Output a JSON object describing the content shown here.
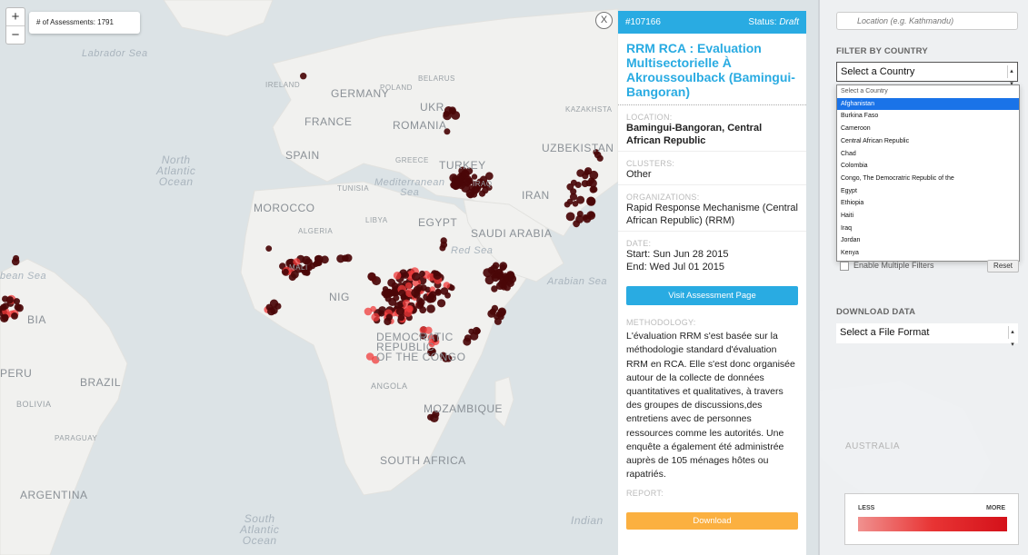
{
  "map": {
    "zoom_in": "+",
    "zoom_out": "−",
    "assessment_count": "# of Assessments: 1791",
    "labels": {
      "labrador_sea": "Labrador Sea",
      "north_atlantic": "North\nAtlantic\nOcean",
      "south_atlantic": "South\nAtlantic\nOcean",
      "indian": "Indian",
      "caribbean": "bean Sea",
      "mediterranean": "Mediterranean\nSea",
      "red_sea": "Red Sea",
      "arabian_sea": "Arabian Sea",
      "germany": "GERMANY",
      "france": "FRANCE",
      "spain": "SPAIN",
      "romania": "ROMANIA",
      "ukraine": "UKR",
      "turkey": "TURKEY",
      "uzbekistan": "UZBEKISTAN",
      "kazakhstan": "KAZAKHSTA",
      "iran": "IRAN",
      "morocco": "MOROCCO",
      "egypt": "EGYPT",
      "saudi": "SAUDI ARABIA",
      "niger": "NIG",
      "democratic_republic": "DEMOCRATIC\nREPUBLIC\nOF THE CONGO",
      "angola": "ANGOLA",
      "mozambique": "MOZAMBIQUE",
      "south_africa": "SOUTH AFRICA",
      "brazil": "BRAZIL",
      "bolivia": "BOLIVIA",
      "peru": "PERU",
      "argentina": "ARGENTINA",
      "colombia": "BIA",
      "australia": "AUSTRALIA",
      "belarus": "BELARUS",
      "poland": "POLAND",
      "tunisia": "TUNISIA",
      "libya": "LIBYA",
      "ireland": "IRELAND",
      "greece": "GREECE",
      "iraq": "IRAQ",
      "algeria": "ALGERIA",
      "mali": "MALI",
      "paraguay": "PARAGUAY"
    }
  },
  "close_label": "X",
  "detail": {
    "id": "#107166",
    "status_label": "Status:",
    "status_value": "Draft",
    "title": "RRM RCA : Evaluation Multisectorielle À Akroussoulback (Bamingui-Bangoran)",
    "location_label": "LOCATION:",
    "location_value": "Bamingui-Bangoran, Central African Republic",
    "clusters_label": "CLUSTERS:",
    "clusters_value": "Other",
    "organizations_label": "ORGANIZATIONS:",
    "organizations_value": "Rapid Response Mechanisme (Central African Republic) (RRM)",
    "date_label": "DATE:",
    "date_start": "Start: Sun Jun 28 2015",
    "date_end": "End: Wed Jul 01 2015",
    "visit_button": "Visit Assessment Page",
    "methodology_label": "METHODOLOGY:",
    "methodology_text": "L'évaluation RRM s'est basée sur la méthodologie standard d'évaluation RRM en RCA. Elle s'est donc organisée autour de la collecte de données quantitatives et qualitatives, à travers des groupes de discussions,des entretiens avec de personnes ressources comme les autorités. Une enquête a également été administrée auprès de 105 ménages hôtes ou rapatriés.",
    "report_label": "REPORT:",
    "download_button": "Download"
  },
  "sidebar": {
    "location_placeholder": "Location (e.g. Kathmandu)",
    "filter_header": "FILTER BY COUNTRY",
    "country_select": "Select a Country",
    "country_options": [
      "Select a Country",
      "Afghanistan",
      "Burkina Faso",
      "Cameroon",
      "Central African Republic",
      "Chad",
      "Colombia",
      "Congo, The Democratric Republic of the",
      "Egypt",
      "Ethiopia",
      "Haiti",
      "Iraq",
      "Jordan",
      "Kenya"
    ],
    "selected_option": "Afghanistan",
    "multiple_filters": "Enable Multiple Filters",
    "reset": "Reset",
    "download_header": "DOWNLOAD DATA",
    "file_format_select": "Select a File Format",
    "legend_less": "LESS",
    "legend_more": "MORE",
    "australia_label": "AUSTRALIA"
  },
  "colors": {
    "accent_blue": "#29abe2",
    "download_orange": "#fbb040",
    "dot_dark": "#4a0608",
    "dot_light": "#ef3b3b"
  }
}
